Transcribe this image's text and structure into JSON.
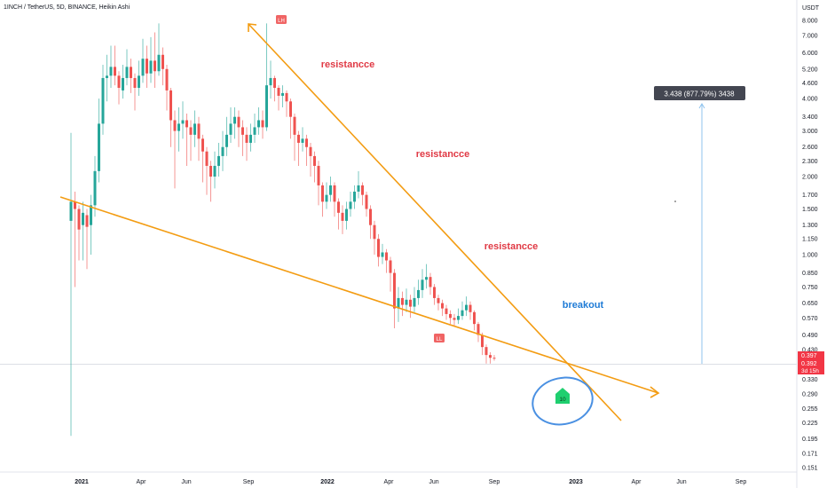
{
  "title": "1INCH / TetherUS, 5D, BINANCE, Heikin Ashi",
  "currency": "USDT",
  "colors": {
    "up": "#26a69a",
    "down": "#ef5350",
    "trendline": "#f39c12",
    "annotation_red": "#e03a45",
    "annotation_blue": "#1e7bd6",
    "circle": "#4a90e2",
    "axis_text": "#131722",
    "price_label_bg": "#f23645",
    "measure_bg": "#434651"
  },
  "chart_data": {
    "type": "candlestick",
    "scale": "log",
    "title": "1INCH / TetherUS, 5D, BINANCE, Heikin Ashi",
    "y_ticks": [
      "8.000",
      "7.000",
      "6.000",
      "5.200",
      "4.600",
      "4.000",
      "3.400",
      "3.000",
      "2.600",
      "2.300",
      "2.000",
      "1.700",
      "1.500",
      "1.300",
      "1.150",
      "1.000",
      "0.850",
      "0.750",
      "0.650",
      "0.570",
      "0.490",
      "0.430",
      "0.380",
      "0.330",
      "0.290",
      "0.255",
      "0.225",
      "0.195",
      "0.171",
      "0.151"
    ],
    "x_ticks": [
      "2021",
      "Apr",
      "Jun",
      "Sep",
      "2022",
      "Apr",
      "Jun",
      "Sep",
      "2023",
      "Apr",
      "Jun",
      "Sep"
    ],
    "ylim": [
      0.145,
      9.6
    ],
    "current_prices": [
      "0.397",
      "0.392"
    ],
    "countdown": "3d 15h",
    "annotations": {
      "resistance": [
        "resistancce",
        "resistancce",
        "resistancce"
      ],
      "breakout": "breakout",
      "high_label": "LH",
      "low_label": "LL",
      "arrow_label": "10",
      "measure": "3.438 (877.79%) 3438"
    },
    "candles": [
      {
        "o": 1.35,
        "c": 1.6,
        "h": 2.95,
        "l": 0.2
      },
      {
        "o": 1.6,
        "c": 1.5,
        "h": 1.75,
        "l": 0.75
      },
      {
        "o": 1.5,
        "c": 1.25,
        "h": 1.55,
        "l": 0.95
      },
      {
        "o": 1.3,
        "c": 1.45,
        "h": 1.6,
        "l": 0.95
      },
      {
        "o": 1.42,
        "c": 1.28,
        "h": 1.5,
        "l": 0.88
      },
      {
        "o": 1.3,
        "c": 1.55,
        "h": 1.7,
        "l": 1.0
      },
      {
        "o": 1.55,
        "c": 2.1,
        "h": 2.4,
        "l": 1.4
      },
      {
        "o": 2.1,
        "c": 3.2,
        "h": 4.0,
        "l": 1.9
      },
      {
        "o": 3.2,
        "c": 4.8,
        "h": 5.4,
        "l": 2.9
      },
      {
        "o": 4.8,
        "c": 4.9,
        "h": 5.9,
        "l": 3.9
      },
      {
        "o": 4.9,
        "c": 5.3,
        "h": 6.4,
        "l": 4.4
      },
      {
        "o": 5.3,
        "c": 4.9,
        "h": 6.4,
        "l": 4.5
      },
      {
        "o": 4.9,
        "c": 4.4,
        "h": 5.1,
        "l": 3.8
      },
      {
        "o": 4.3,
        "c": 4.8,
        "h": 5.4,
        "l": 4.0
      },
      {
        "o": 4.8,
        "c": 5.3,
        "h": 6.2,
        "l": 4.5
      },
      {
        "o": 5.3,
        "c": 4.8,
        "h": 5.7,
        "l": 4.2
      },
      {
        "o": 4.8,
        "c": 4.4,
        "h": 5.0,
        "l": 3.6
      },
      {
        "o": 4.4,
        "c": 4.9,
        "h": 5.6,
        "l": 4.1
      },
      {
        "o": 4.9,
        "c": 5.7,
        "h": 6.8,
        "l": 4.6
      },
      {
        "o": 5.7,
        "c": 5.0,
        "h": 6.4,
        "l": 4.4
      },
      {
        "o": 5.0,
        "c": 5.6,
        "h": 6.9,
        "l": 4.6
      },
      {
        "o": 5.6,
        "c": 5.1,
        "h": 7.2,
        "l": 4.4
      },
      {
        "o": 5.1,
        "c": 5.9,
        "h": 7.8,
        "l": 4.9
      },
      {
        "o": 5.9,
        "c": 5.2,
        "h": 6.3,
        "l": 4.5
      },
      {
        "o": 5.2,
        "c": 4.3,
        "h": 5.4,
        "l": 3.6
      },
      {
        "o": 4.3,
        "c": 3.3,
        "h": 4.4,
        "l": 2.6
      },
      {
        "o": 3.3,
        "c": 3.0,
        "h": 3.6,
        "l": 1.8
      },
      {
        "o": 3.0,
        "c": 3.2,
        "h": 3.7,
        "l": 2.5
      },
      {
        "o": 3.2,
        "c": 3.3,
        "h": 3.9,
        "l": 2.8
      },
      {
        "o": 3.3,
        "c": 3.1,
        "h": 3.5,
        "l": 2.2
      },
      {
        "o": 3.1,
        "c": 2.9,
        "h": 3.3,
        "l": 2.3
      },
      {
        "o": 2.9,
        "c": 3.2,
        "h": 3.6,
        "l": 2.6
      },
      {
        "o": 3.2,
        "c": 2.8,
        "h": 3.4,
        "l": 2.3
      },
      {
        "o": 2.8,
        "c": 2.5,
        "h": 2.9,
        "l": 1.9
      },
      {
        "o": 2.5,
        "c": 2.2,
        "h": 2.6,
        "l": 1.7
      },
      {
        "o": 2.2,
        "c": 2.0,
        "h": 2.3,
        "l": 1.6
      },
      {
        "o": 2.0,
        "c": 2.2,
        "h": 2.5,
        "l": 1.8
      },
      {
        "o": 2.2,
        "c": 2.4,
        "h": 2.7,
        "l": 2.0
      },
      {
        "o": 2.4,
        "c": 2.6,
        "h": 3.0,
        "l": 2.1
      },
      {
        "o": 2.6,
        "c": 2.9,
        "h": 3.4,
        "l": 2.4
      },
      {
        "o": 2.9,
        "c": 3.2,
        "h": 3.7,
        "l": 2.7
      },
      {
        "o": 3.2,
        "c": 3.4,
        "h": 3.7,
        "l": 2.8
      },
      {
        "o": 3.4,
        "c": 3.1,
        "h": 3.6,
        "l": 2.6
      },
      {
        "o": 3.1,
        "c": 2.9,
        "h": 3.3,
        "l": 2.4
      },
      {
        "o": 2.9,
        "c": 2.7,
        "h": 3.1,
        "l": 2.3
      },
      {
        "o": 2.7,
        "c": 2.9,
        "h": 3.2,
        "l": 2.5
      },
      {
        "o": 2.9,
        "c": 3.1,
        "h": 3.5,
        "l": 2.7
      },
      {
        "o": 3.1,
        "c": 3.3,
        "h": 3.7,
        "l": 2.9
      },
      {
        "o": 3.3,
        "c": 3.1,
        "h": 3.6,
        "l": 2.8
      },
      {
        "o": 3.1,
        "c": 4.5,
        "h": 7.8,
        "l": 3.0
      },
      {
        "o": 4.5,
        "c": 4.8,
        "h": 5.6,
        "l": 4.0
      },
      {
        "o": 4.8,
        "c": 4.4,
        "h": 4.9,
        "l": 3.9
      },
      {
        "o": 4.4,
        "c": 4.1,
        "h": 4.5,
        "l": 3.6
      },
      {
        "o": 4.1,
        "c": 4.2,
        "h": 4.5,
        "l": 3.7
      },
      {
        "o": 4.2,
        "c": 3.9,
        "h": 4.3,
        "l": 3.4
      },
      {
        "o": 3.9,
        "c": 3.4,
        "h": 4.0,
        "l": 2.8
      },
      {
        "o": 3.4,
        "c": 2.9,
        "h": 3.5,
        "l": 2.3
      },
      {
        "o": 2.9,
        "c": 2.7,
        "h": 3.0,
        "l": 2.2
      },
      {
        "o": 2.7,
        "c": 2.8,
        "h": 3.1,
        "l": 2.5
      },
      {
        "o": 2.8,
        "c": 2.6,
        "h": 2.9,
        "l": 2.2
      },
      {
        "o": 2.6,
        "c": 2.4,
        "h": 2.7,
        "l": 2.0
      },
      {
        "o": 2.4,
        "c": 2.2,
        "h": 2.5,
        "l": 1.9
      },
      {
        "o": 2.2,
        "c": 1.85,
        "h": 2.3,
        "l": 1.55
      },
      {
        "o": 1.85,
        "c": 1.6,
        "h": 1.9,
        "l": 1.4
      },
      {
        "o": 1.6,
        "c": 1.7,
        "h": 1.9,
        "l": 1.5
      },
      {
        "o": 1.7,
        "c": 1.85,
        "h": 2.0,
        "l": 1.6
      },
      {
        "o": 1.85,
        "c": 1.6,
        "h": 1.9,
        "l": 1.4
      },
      {
        "o": 1.6,
        "c": 1.45,
        "h": 1.65,
        "l": 1.25
      },
      {
        "o": 1.45,
        "c": 1.35,
        "h": 1.55,
        "l": 1.2
      },
      {
        "o": 1.35,
        "c": 1.5,
        "h": 1.6,
        "l": 1.25
      },
      {
        "o": 1.5,
        "c": 1.6,
        "h": 1.75,
        "l": 1.4
      },
      {
        "o": 1.6,
        "c": 1.75,
        "h": 1.85,
        "l": 1.5
      },
      {
        "o": 1.75,
        "c": 1.85,
        "h": 2.1,
        "l": 1.65
      },
      {
        "o": 1.85,
        "c": 1.7,
        "h": 1.9,
        "l": 1.55
      },
      {
        "o": 1.7,
        "c": 1.5,
        "h": 1.75,
        "l": 1.4
      },
      {
        "o": 1.5,
        "c": 1.3,
        "h": 1.55,
        "l": 1.15
      },
      {
        "o": 1.3,
        "c": 1.15,
        "h": 1.35,
        "l": 1.0
      },
      {
        "o": 1.15,
        "c": 0.98,
        "h": 1.2,
        "l": 0.9
      },
      {
        "o": 0.98,
        "c": 1.02,
        "h": 1.1,
        "l": 0.92
      },
      {
        "o": 1.02,
        "c": 0.95,
        "h": 1.05,
        "l": 0.85
      },
      {
        "o": 0.95,
        "c": 0.85,
        "h": 0.98,
        "l": 0.72
      },
      {
        "o": 0.85,
        "c": 0.62,
        "h": 0.88,
        "l": 0.52
      },
      {
        "o": 0.62,
        "c": 0.68,
        "h": 0.75,
        "l": 0.55
      },
      {
        "o": 0.68,
        "c": 0.64,
        "h": 0.72,
        "l": 0.58
      },
      {
        "o": 0.64,
        "c": 0.67,
        "h": 0.74,
        "l": 0.6
      },
      {
        "o": 0.67,
        "c": 0.63,
        "h": 0.7,
        "l": 0.57
      },
      {
        "o": 0.63,
        "c": 0.68,
        "h": 0.75,
        "l": 0.6
      },
      {
        "o": 0.68,
        "c": 0.73,
        "h": 0.8,
        "l": 0.64
      },
      {
        "o": 0.73,
        "c": 0.8,
        "h": 0.88,
        "l": 0.68
      },
      {
        "o": 0.8,
        "c": 0.82,
        "h": 0.92,
        "l": 0.74
      },
      {
        "o": 0.82,
        "c": 0.75,
        "h": 0.85,
        "l": 0.7
      },
      {
        "o": 0.75,
        "c": 0.68,
        "h": 0.77,
        "l": 0.64
      },
      {
        "o": 0.68,
        "c": 0.65,
        "h": 0.7,
        "l": 0.61
      },
      {
        "o": 0.65,
        "c": 0.62,
        "h": 0.67,
        "l": 0.58
      },
      {
        "o": 0.62,
        "c": 0.59,
        "h": 0.64,
        "l": 0.56
      },
      {
        "o": 0.59,
        "c": 0.57,
        "h": 0.61,
        "l": 0.54
      },
      {
        "o": 0.57,
        "c": 0.56,
        "h": 0.59,
        "l": 0.53
      },
      {
        "o": 0.56,
        "c": 0.58,
        "h": 0.62,
        "l": 0.54
      },
      {
        "o": 0.58,
        "c": 0.61,
        "h": 0.66,
        "l": 0.56
      },
      {
        "o": 0.61,
        "c": 0.64,
        "h": 0.69,
        "l": 0.58
      },
      {
        "o": 0.64,
        "c": 0.6,
        "h": 0.66,
        "l": 0.56
      },
      {
        "o": 0.6,
        "c": 0.54,
        "h": 0.61,
        "l": 0.51
      },
      {
        "o": 0.54,
        "c": 0.49,
        "h": 0.55,
        "l": 0.46
      },
      {
        "o": 0.49,
        "c": 0.44,
        "h": 0.5,
        "l": 0.41
      },
      {
        "o": 0.44,
        "c": 0.41,
        "h": 0.45,
        "l": 0.38
      },
      {
        "o": 0.41,
        "c": 0.4,
        "h": 0.42,
        "l": 0.38
      },
      {
        "o": 0.4,
        "c": 0.397,
        "h": 0.41,
        "l": 0.39
      }
    ]
  }
}
